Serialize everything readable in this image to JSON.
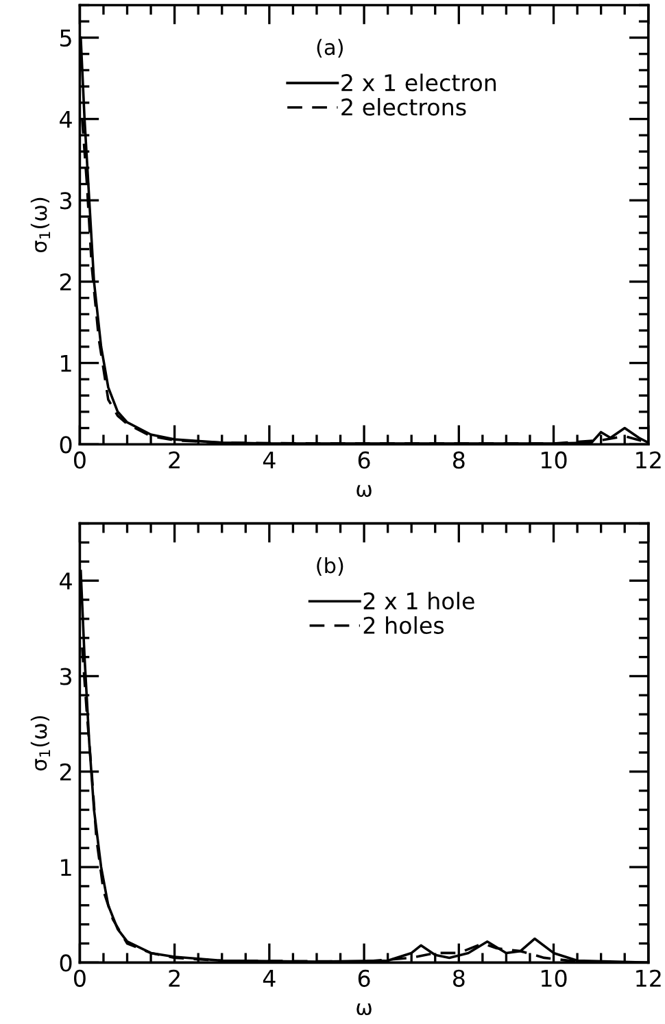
{
  "chart_data": [
    {
      "type": "line",
      "xlabel": "ω",
      "ylabel": "σ$_{1}$(ω)",
      "annotations": [
        "(a)"
      ],
      "legend": "top",
      "xlim": [
        0,
        12
      ],
      "ylim": [
        0,
        5.4
      ],
      "xticks": [
        0,
        2,
        4,
        6,
        8,
        10,
        12
      ],
      "yticks": [
        0,
        1,
        2,
        3,
        4,
        5
      ],
      "series": [
        {
          "name": "2 x 1 electron",
          "color": "#000000",
          "line_style": "solid",
          "x": [
            0.02,
            0.1,
            0.2,
            0.3,
            0.45,
            0.6,
            0.8,
            1,
            1.5,
            2,
            3,
            4,
            6,
            10,
            10.8,
            11,
            11.2,
            11.5,
            11.8,
            12
          ],
          "values": [
            5,
            4,
            3,
            2,
            1.2,
            0.7,
            0.4,
            0.27,
            0.12,
            0.06,
            0.02,
            0.01,
            0.01,
            0.01,
            0.02,
            0.15,
            0.08,
            0.2,
            0.08,
            0.02
          ]
        },
        {
          "name": "2 electrons",
          "color": "#000000",
          "line_style": "dashed",
          "x": [
            0.05,
            0.15,
            0.25,
            0.4,
            0.6,
            0.8,
            1,
            1.5,
            2,
            3,
            5,
            10,
            11,
            11.5,
            12
          ],
          "values": [
            4.0,
            3.2,
            2.2,
            1.3,
            0.55,
            0.35,
            0.25,
            0.1,
            0.05,
            0.02,
            0.01,
            0.01,
            0.05,
            0.1,
            0.02
          ]
        }
      ]
    },
    {
      "type": "line",
      "xlabel": "ω",
      "ylabel": "σ$_{1}$(ω)",
      "annotations": [
        "(b)"
      ],
      "legend": "top",
      "xlim": [
        0,
        12
      ],
      "ylim": [
        0,
        4.6
      ],
      "xticks": [
        0,
        2,
        4,
        6,
        8,
        10,
        12
      ],
      "yticks": [
        0,
        1,
        2,
        3,
        4
      ],
      "series": [
        {
          "name": "2 x 1 hole",
          "color": "#000000",
          "line_style": "solid",
          "x": [
            0.02,
            0.1,
            0.2,
            0.3,
            0.45,
            0.6,
            0.8,
            1,
            1.5,
            2,
            3,
            5,
            6.5,
            7.0,
            7.2,
            7.5,
            7.8,
            8.2,
            8.6,
            9.0,
            9.3,
            9.6,
            10,
            10.5,
            12
          ],
          "values": [
            4.1,
            3.2,
            2.3,
            1.6,
            1.0,
            0.6,
            0.35,
            0.22,
            0.1,
            0.06,
            0.02,
            0.01,
            0.02,
            0.1,
            0.18,
            0.08,
            0.05,
            0.1,
            0.22,
            0.1,
            0.12,
            0.25,
            0.1,
            0.02,
            0
          ]
        },
        {
          "name": "2 holes",
          "color": "#000000",
          "line_style": "dashed",
          "x": [
            0.05,
            0.15,
            0.25,
            0.35,
            0.5,
            0.7,
            1,
            1.5,
            2,
            3,
            6,
            7,
            7.5,
            8,
            8.5,
            8.8,
            9.3,
            9.8,
            10.5
          ],
          "values": [
            3.3,
            2.6,
            2.0,
            1.3,
            0.75,
            0.45,
            0.2,
            0.1,
            0.05,
            0.02,
            0.01,
            0.05,
            0.1,
            0.1,
            0.2,
            0.15,
            0.12,
            0.05,
            0.01
          ]
        }
      ]
    }
  ]
}
